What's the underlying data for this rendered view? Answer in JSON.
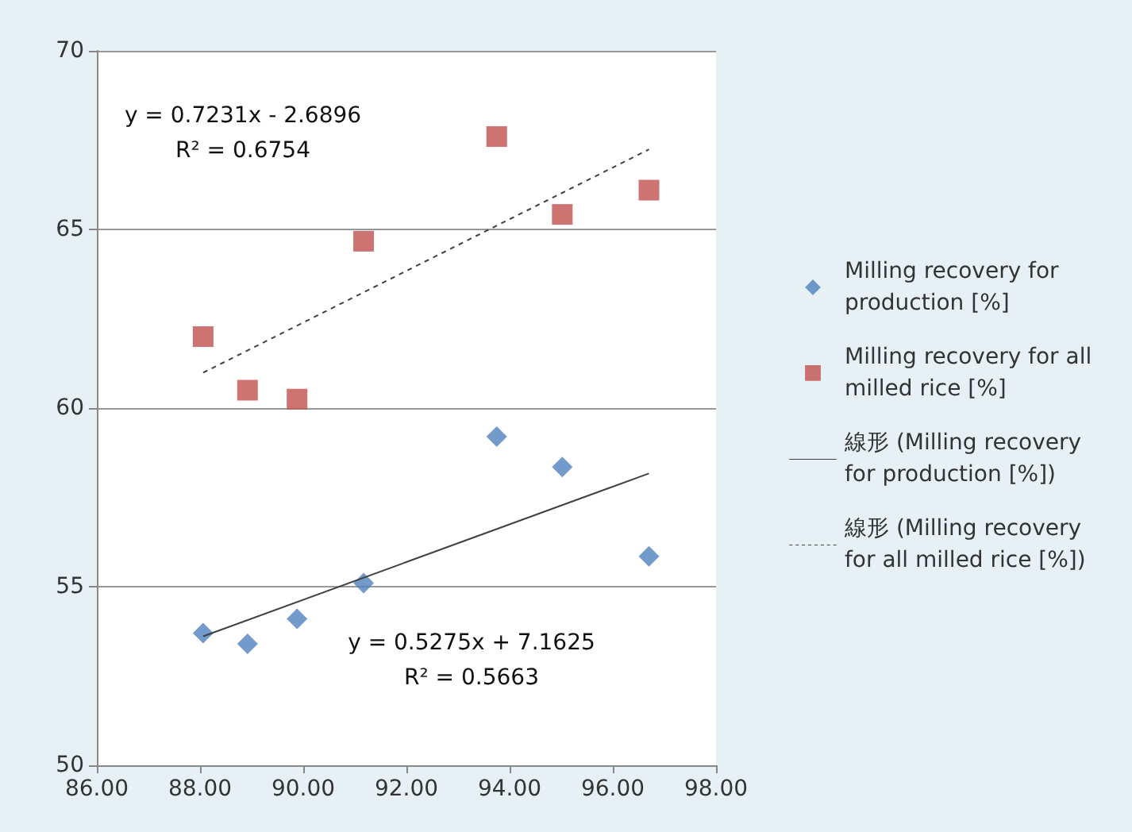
{
  "chart_data": {
    "type": "scatter",
    "xlim": [
      86,
      98
    ],
    "xticks": [
      {
        "value": 86,
        "label": "86.00"
      },
      {
        "value": 88,
        "label": "88.00"
      },
      {
        "value": 90,
        "label": "90.00"
      },
      {
        "value": 92,
        "label": "92.00"
      },
      {
        "value": 94,
        "label": "94.00"
      },
      {
        "value": 96,
        "label": "96.00"
      },
      {
        "value": 98,
        "label": "98.00"
      }
    ],
    "ylim": [
      50,
      70
    ],
    "yticks": [
      50,
      55,
      60,
      65,
      70
    ],
    "grid": "y",
    "legend": "right",
    "series": [
      {
        "name": "Milling recovery for production [%]",
        "color": "#4f81bd",
        "marker": "diamond",
        "x": [
          88.06,
          88.92,
          89.88,
          91.17,
          93.75,
          95.02,
          96.7
        ],
        "values": [
          53.7,
          53.4,
          54.1,
          55.1,
          59.2,
          58.35,
          55.85
        ]
      },
      {
        "name": "Milling recovery for all milled rice [%]",
        "color": "#c0504d",
        "marker": "square",
        "x": [
          88.06,
          88.92,
          89.88,
          91.17,
          93.75,
          95.02,
          96.7
        ],
        "values": [
          62.0,
          60.5,
          60.25,
          64.67,
          67.6,
          65.42,
          66.1
        ]
      },
      {
        "name": "線形 (Milling recovery for production [%])",
        "type": "line",
        "color": "#404040",
        "marker": "none",
        "line_style": "solid",
        "x": [
          88.06,
          96.7
        ],
        "values": [
          53.61,
          58.17
        ]
      },
      {
        "name": "線形 (Milling recovery for all milled rice [%])",
        "type": "line",
        "color": "#404040",
        "marker": "none",
        "line_style": "dashed",
        "x": [
          88.06,
          96.7
        ],
        "values": [
          60.99,
          67.24
        ]
      }
    ],
    "annotations": [
      "y = 0.7231x - 2.6896\nR² = 0.6754",
      "y = 0.5275x + 7.1625\nR² = 0.5663"
    ]
  }
}
